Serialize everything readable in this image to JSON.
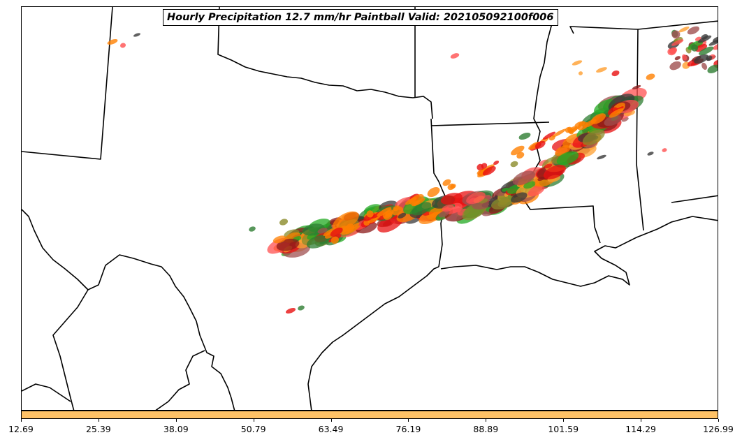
{
  "title": "Hourly Precipitation 12.7 mm/hr Paintball Valid: 202105092100f006",
  "colorbar": {
    "color": "#ffc266",
    "ticks": [
      "12.69",
      "25.39",
      "38.09",
      "50.79",
      "63.49",
      "76.19",
      "88.89",
      "101.59",
      "114.29",
      "126.99"
    ]
  },
  "member_colors": [
    "#ff7f00",
    "#ff9f2f",
    "#e81010",
    "#8b1a1a",
    "#22aa22",
    "#2e7d32",
    "#8b8b2b",
    "#3a3a3a",
    "#ff5050",
    "#a05050"
  ]
}
